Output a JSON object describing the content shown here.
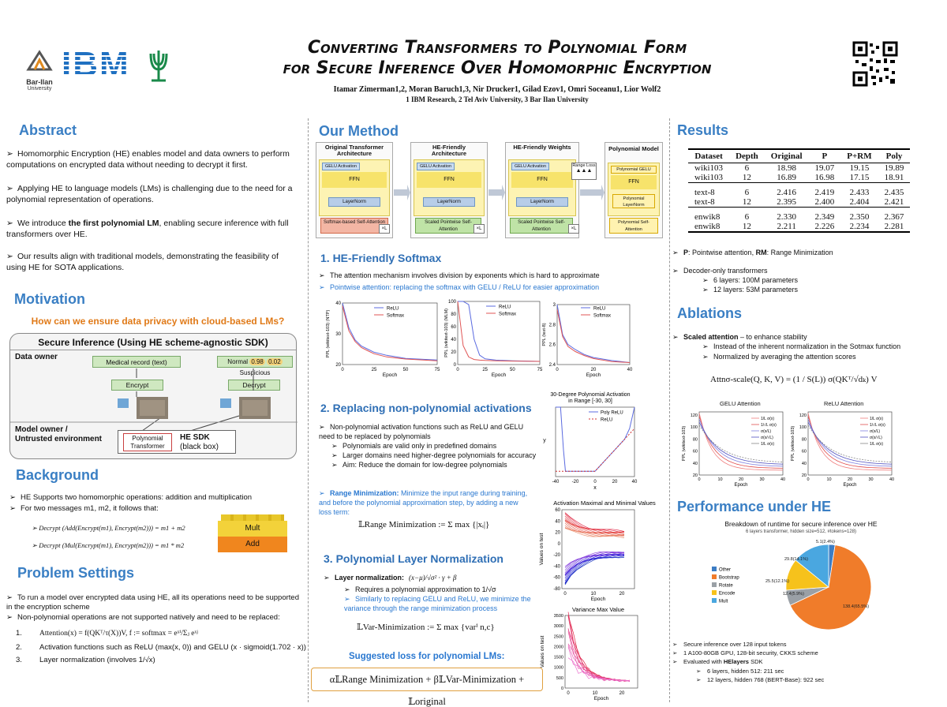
{
  "header": {
    "title_line1": "Converting Transformers to Polynomial Form",
    "title_line2": "for Secure Inference Over Homomorphic Encryption",
    "authors": "Itamar Zimerman1,2, Moran Baruch1,3, Nir Drucker1, Gilad Ezov1, Omri Soceanu1, Lior Wolf2",
    "affiliations": "1 IBM Research,  2 Tel Aviv University,  3 Bar Ilan University",
    "logo_bar_ilan_line1": "Bar-Ilan",
    "logo_bar_ilan_line2": "University",
    "logo_ibm": "IBM"
  },
  "abstract": {
    "title": "Abstract",
    "items": [
      "Homomorphic Encryption (HE) enables model and data owners to perform computations on encrypted data without needing to decrypt it first.",
      "Applying HE to language models (LMs) is challenging due to the need for a polynomial representation of operations.",
      "the first polynomial LM",
      "Our results align with traditional models, demonstrating the feasibility of using HE for SOTA applications."
    ],
    "item3_pre": "We introduce ",
    "item3_post": ", enabling secure inference with full transformers over HE."
  },
  "motivation": {
    "title": "Motivation",
    "question": "How can we ensure data privacy with cloud-based LMs?",
    "diagram": {
      "title": "Secure Inference (Using HE scheme-agnostic SDK)",
      "data_owner": "Data owner",
      "medical_record": "Medical record (text)",
      "normal": "Normal",
      "normal_score": "0.98",
      "suspicious_score": "0.02",
      "suspicious": "Suspicious",
      "encrypt": "Encrypt",
      "decrypt": "Decrypt",
      "model_owner_line1": "Model owner /",
      "model_owner_line2": "Untrusted environment",
      "poly_transformer_line1": "Polynomial",
      "poly_transformer_line2": "Transformer",
      "he_sdk_line1": "HE SDK",
      "he_sdk_line2": "(black box)"
    }
  },
  "background": {
    "title": "Background",
    "item1": "HE Supports two homomorphic operations: addition and multiplication",
    "item2": "For two messages m1, m2, it follows that:",
    "eq1": "Decrypt (Add(Encrypt(m1), Encrypt(m2))) = m1 + m2",
    "eq2": "Decrypt (Mul(Encrypt(m1), Encrypt(m2))) = m1 * m2",
    "mult": "Mult",
    "add": "Add"
  },
  "problem": {
    "title": "Problem Settings",
    "item1": "To run a model over encrypted data using HE, all its operations need to be supported in the encryption scheme",
    "item2": "Non-polynomial operations are not supported natively and need to be replaced:",
    "n1": "1.",
    "n2": "2.",
    "n3": "3.",
    "eq1": "Attention(x) = f(QKᵀ/τ(X))V,  f := softmax = eˣⁱ/Σⱼ eˣʲ",
    "eq2": "Activation functions such as ReLU (max(x, 0)) and GELU (x · sigmoid(1.702 · x))",
    "eq3": "Layer normalization (involves 1/√x)"
  },
  "method": {
    "title": "Our Method",
    "arch": {
      "col1_title": "Original Transformer Architecture",
      "col2_title": "HE-Friendly Architecture",
      "col3_title": "HE-Friendly Weights",
      "col4_title": "Polynomial Model",
      "gelu": "GELU Activation",
      "ffn": "FFN",
      "layernorm": "LayerNorm",
      "softmax_attn": "Softmax-based Self-Attention",
      "scaled_attn": "Scaled Pointwise Self-Attention",
      "range_loss": "Range Loss",
      "poly_gelu": "Polynomial GELU",
      "poly_ln": "Polynomial LayerNorm",
      "poly_attn": "Polynomial Self-Attention",
      "xl": "×L"
    },
    "s1": {
      "title": "1. HE-Friendly Softmax",
      "item1": "The attention mechanism involves division by exponents which is hard to approximate",
      "item2_hl": "Pointwise attention",
      "item2_rest": ": replacing the softmax with GELU / ReLU for easier approximation"
    },
    "s2": {
      "title": "2. Replacing non-polynomial activations",
      "item1": "Non-polynomial activation functions such as ReLU and GELU need to be replaced by polynomials",
      "sub1": "Polynomials are valid only in predefined domains",
      "sub2": "Larger domains need higher-degree polynomials for accuracy",
      "sub3": "Aim: Reduce the domain for low-degree polynomials",
      "item2_hl": "Range Minimization:",
      "item2_rest": " Minimize the input range during training, and before the polynomial approximation step, by adding a new loss term:",
      "eq": "𝕃Range Minimization := Σ max {|xᵢ|}"
    },
    "s3": {
      "title": "3. Polynomial Layer Normalization",
      "item1_b": "Layer normalization:",
      "item1_eq": "(x−μ)/√σ² · γ + β",
      "sub1": "Requires a polynomial approximation to 1/√σ",
      "sub2": "Similarly to replacing GELU and ReLU, we minimize the variance through the range minimization process",
      "eq": "𝕃Var-Minimization := Σ max {varⁱ n,c}",
      "suggested": "Suggested loss for polynomial LMs:",
      "final_eq": "α𝕃Range Minimization + β𝕃Var-Minimization + 𝕃original"
    }
  },
  "results": {
    "title": "Results",
    "headers": [
      "Dataset",
      "Depth",
      "Original",
      "P",
      "P+RM",
      "Poly"
    ],
    "rows": [
      [
        "wiki103",
        "6",
        "18.98",
        "19.07",
        "19.15",
        "19.89"
      ],
      [
        "wiki103",
        "12",
        "16.89",
        "16.98",
        "17.15",
        "18.91"
      ],
      [
        "text-8",
        "6",
        "2.416",
        "2.419",
        "2.433",
        "2.435"
      ],
      [
        "text-8",
        "12",
        "2.395",
        "2.400",
        "2.404",
        "2.421"
      ],
      [
        "enwik8",
        "6",
        "2.330",
        "2.349",
        "2.350",
        "2.367"
      ],
      [
        "enwik8",
        "12",
        "2.211",
        "2.226",
        "2.234",
        "2.281"
      ]
    ],
    "note_p": "P",
    "note_p_rest": ": Pointwise attention, ",
    "note_rm": "RM",
    "note_rm_rest": ": Range Minimization",
    "decoder": "Decoder-only transformers",
    "d1": "6 layers: 100M parameters",
    "d2": "12 layers: 53M parameters"
  },
  "ablations": {
    "title": "Ablations",
    "item_b": "Scaled attention",
    "item_rest": " – to enhance stability",
    "sub1": "Instead of the inherent normalization in the Sotmax function",
    "sub2": "Normalized by averaging the attention scores",
    "eq": "Attnσ-scale(Q, K, V) = (1 / S(L)) σ(QKᵀ/√dₖ) V",
    "gelu_title": "GELU Attention",
    "relu_title": "ReLU Attention"
  },
  "performance": {
    "title": "Performance under HE",
    "chart_title": "Breakdown of runtime for secure inference over HE",
    "chart_subtitle": "6 layers transformer, hidden size=512, #tokens=128)",
    "item1": "Secure inference over 128 input tokens",
    "item2": "1 A100-80GB GPU, 128-bit security, CKKS scheme",
    "item3_pre": "Evaluated with ",
    "item3_b": "HElayers",
    "item3_post": " SDK",
    "sub1": "6 layers, hidden 512: 211 sec",
    "sub2": "12 layers, hidden 768 (BERT-Base): 922 sec"
  },
  "charts_text": {
    "relu": "ReLU",
    "softmax": "Softmax",
    "epoch": "Epoch",
    "ylab1": "PPL (wikitext-103) (NTP)",
    "ylab2": "PPL (wikitext-103) (MLM)",
    "ylab3": "PPL (text-8)",
    "act_title_1": "30-Degree Polynomial Activation",
    "act_title_2": "in Range [-30, 30]",
    "poly_relu": "Poly ReLU",
    "x": "x",
    "y": "y",
    "maxmin_title": "Activation Maximal and Minimal Values",
    "values_on_test": "Values on test",
    "variance_title": "Variance Max Value",
    "abl_ylab": "PPL (wikitext-103)",
    "abl_legend": [
      "1/L σ(x)",
      "1/√L σ(x)",
      "σ(x/L)",
      "σ(x/√L)",
      "1/L σ(x)"
    ]
  },
  "chart_data": [
    {
      "type": "line",
      "title": "",
      "xlabel": "Epoch",
      "ylabel": "PPL (wikitext-103) (NTP)",
      "xlim": [
        0,
        75
      ],
      "ylim": [
        20,
        40
      ],
      "x": [
        0,
        5,
        10,
        15,
        20,
        25,
        35,
        50,
        75
      ],
      "series": [
        {
          "name": "ReLU",
          "values": [
            40,
            32,
            28,
            26,
            25,
            24,
            23,
            22,
            21.5
          ]
        },
        {
          "name": "Softmax",
          "values": [
            39,
            31,
            27.5,
            25.5,
            24.5,
            23.5,
            22.5,
            21.8,
            21.2
          ]
        }
      ]
    },
    {
      "type": "line",
      "title": "",
      "xlabel": "Epoch",
      "ylabel": "PPL (wikitext-103) (MLM)",
      "xlim": [
        0,
        75
      ],
      "ylim": [
        0,
        100
      ],
      "x": [
        0,
        5,
        10,
        15,
        20,
        25,
        35,
        50,
        75
      ],
      "series": [
        {
          "name": "ReLU",
          "values": [
            100,
            100,
            95,
            40,
            15,
            9,
            7,
            6,
            5
          ]
        },
        {
          "name": "Softmax",
          "values": [
            100,
            30,
            12,
            8,
            7,
            6.5,
            6,
            5.5,
            5
          ]
        }
      ]
    },
    {
      "type": "line",
      "title": "",
      "xlabel": "Epoch",
      "ylabel": "PPL (text-8)",
      "xlim": [
        0,
        40
      ],
      "ylim": [
        2.4,
        3.0
      ],
      "x": [
        0,
        3,
        6,
        10,
        15,
        20,
        30,
        40
      ],
      "series": [
        {
          "name": "ReLU",
          "values": [
            3.0,
            2.7,
            2.6,
            2.55,
            2.5,
            2.47,
            2.44,
            2.42
          ]
        },
        {
          "name": "Softmax",
          "values": [
            2.95,
            2.68,
            2.58,
            2.53,
            2.49,
            2.46,
            2.43,
            2.42
          ]
        }
      ]
    },
    {
      "type": "line",
      "title": "30-Degree Polynomial Activation in Range [-30, 30]",
      "xlabel": "x",
      "ylabel": "y",
      "xlim": [
        -40,
        40
      ],
      "x": [
        -40,
        -35,
        -32,
        -30,
        -20,
        0,
        10,
        20,
        30,
        35,
        40
      ],
      "series": [
        {
          "name": "Poly ReLU",
          "values": [
            60,
            60,
            20,
            0,
            0,
            0,
            10,
            20,
            30,
            40,
            60
          ]
        },
        {
          "name": "ReLU",
          "values": [
            0,
            0,
            0,
            0,
            0,
            0,
            10,
            20,
            30,
            35,
            40
          ]
        }
      ]
    },
    {
      "type": "pie",
      "title": "Breakdown of runtime for secure inference over HE",
      "subtitle": "6 layers transformer, hidden size=512, #tokens=128)",
      "categories": [
        "Other",
        "Bootstrap",
        "Rotate",
        "Encode",
        "Mult"
      ],
      "values": [
        5.1,
        138.4,
        12.4,
        25.5,
        29.8
      ],
      "labels": [
        "5.1(2.4%)",
        "138.4(65.5%)",
        "12.4(5.9%)",
        "25.5(12.1%)",
        "29.8(14.1%)"
      ],
      "colors": [
        "#3c7dc4",
        "#f07c2a",
        "#9aa0a6",
        "#f6c21c",
        "#4aa7e0"
      ]
    }
  ]
}
